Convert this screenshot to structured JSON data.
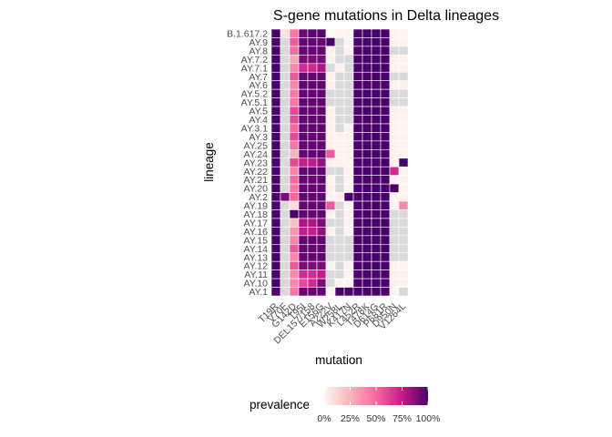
{
  "chart_data": {
    "type": "heatmap",
    "title": "S-gene mutations in Delta lineages",
    "xlabel": "mutation",
    "ylabel": "lineage",
    "rows": [
      "B.1.617.2",
      "AY.9",
      "AY.8",
      "AY.7.2",
      "AY.7.1",
      "AY.7",
      "AY.6",
      "AY.5.2",
      "AY.5.1",
      "AY.5",
      "AY.4",
      "AY.3.1",
      "AY.3",
      "AY.25",
      "AY.24",
      "AY.23",
      "AY.22",
      "AY.21",
      "AY.20",
      "AY.2",
      "AY.19",
      "AY.18",
      "AY.17",
      "AY.16",
      "AY.15",
      "AY.14",
      "AY.13",
      "AY.12",
      "AY.11",
      "AY.10",
      "AY.1"
    ],
    "columns": [
      "T19R",
      "V70F",
      "G142D",
      "T95I",
      "DEL157/158",
      "E156G",
      "A222V",
      "W258L",
      "K417N",
      "L452R",
      "T478K",
      "D614G",
      "P681R",
      "D950N",
      "V1264L"
    ],
    "value_range": [
      0,
      1
    ],
    "missing_color": "#d9d9d9",
    "values": [
      [
        1,
        0.08,
        0.45,
        0.92,
        0.96,
        0.97,
        0,
        0.02,
        0.02,
        1,
        1,
        1,
        1,
        0.02,
        0.02
      ],
      [
        1,
        null,
        0.55,
        0.95,
        0.95,
        0.95,
        1,
        null,
        0.02,
        1,
        1,
        1,
        1,
        0.02,
        0.02
      ],
      [
        1,
        null,
        0.5,
        0.95,
        0.95,
        0.95,
        0.02,
        null,
        0.02,
        1,
        1,
        1,
        1,
        null,
        null
      ],
      [
        1,
        null,
        0.3,
        0.9,
        0.9,
        0.9,
        0.02,
        null,
        null,
        1,
        1,
        1,
        1,
        0.02,
        0.02
      ],
      [
        1,
        null,
        0.4,
        0.7,
        0.7,
        0.8,
        null,
        0.02,
        null,
        1,
        1,
        1,
        1,
        0.02,
        0.02
      ],
      [
        1,
        null,
        0.55,
        0.95,
        0.95,
        0.95,
        0.02,
        null,
        null,
        1,
        1,
        1,
        1,
        null,
        null
      ],
      [
        1,
        null,
        0.4,
        0.95,
        0.95,
        0.95,
        0.02,
        null,
        null,
        1,
        1,
        1,
        1,
        0.02,
        0.02
      ],
      [
        1,
        null,
        0.45,
        0.95,
        0.95,
        0.95,
        null,
        null,
        null,
        1,
        1,
        1,
        1,
        null,
        null
      ],
      [
        1,
        null,
        0.45,
        0.95,
        0.95,
        0.95,
        null,
        null,
        null,
        1,
        1,
        1,
        1,
        null,
        null
      ],
      [
        1,
        null,
        0.6,
        0.95,
        0.95,
        0.95,
        0.02,
        null,
        null,
        1,
        1,
        1,
        1,
        0.02,
        0.02
      ],
      [
        1,
        null,
        0.6,
        0.95,
        0.95,
        0.95,
        0.02,
        null,
        null,
        1,
        1,
        1,
        1,
        0.02,
        0.02
      ],
      [
        1,
        null,
        0.5,
        0.95,
        0.95,
        0.95,
        0.02,
        null,
        0.02,
        1,
        1,
        1,
        1,
        0.02,
        0.02
      ],
      [
        1,
        null,
        0.6,
        0.95,
        0.95,
        0.95,
        0.02,
        0.02,
        0.02,
        1,
        1,
        1,
        1,
        0.02,
        0.02
      ],
      [
        1,
        null,
        0.45,
        0.95,
        0.95,
        0.95,
        0.02,
        0.02,
        0.02,
        1,
        1,
        1,
        1,
        0.02,
        0.02
      ],
      [
        1,
        null,
        0.25,
        0.95,
        0.95,
        0.95,
        0.55,
        0.02,
        0.02,
        1,
        1,
        1,
        1,
        0.02,
        0.02
      ],
      [
        1,
        null,
        0.6,
        0.75,
        0.75,
        0.85,
        0.02,
        0.02,
        0.02,
        1,
        1,
        1,
        1,
        0.02,
        1
      ],
      [
        1,
        null,
        0.4,
        0.95,
        0.95,
        0.95,
        null,
        null,
        0.02,
        1,
        1,
        1,
        1,
        0.7,
        0.02
      ],
      [
        1,
        null,
        0.5,
        0.95,
        0.95,
        0.95,
        0.02,
        null,
        0.02,
        1,
        1,
        1,
        1,
        0.02,
        0.02
      ],
      [
        1,
        null,
        0.45,
        0.95,
        0.95,
        0.95,
        0.02,
        null,
        0.02,
        1,
        1,
        1,
        1,
        1,
        0.02
      ],
      [
        1,
        0.9,
        0.5,
        0.95,
        0.95,
        0.95,
        0.02,
        0.02,
        1,
        1,
        1,
        1,
        1,
        0.02,
        0.02
      ],
      [
        1,
        null,
        0.1,
        0.95,
        0.95,
        0.95,
        0.55,
        null,
        0.02,
        1,
        1,
        1,
        1,
        0.02,
        0.4
      ],
      [
        1,
        null,
        1,
        0.95,
        0.95,
        0.95,
        0.02,
        null,
        0.02,
        1,
        1,
        1,
        1,
        null,
        null
      ],
      [
        1,
        null,
        0.2,
        0.8,
        0.8,
        0.9,
        null,
        null,
        0.02,
        1,
        1,
        1,
        1,
        null,
        null
      ],
      [
        1,
        null,
        0.35,
        0.75,
        0.75,
        0.85,
        0.02,
        null,
        0.02,
        1,
        1,
        1,
        1,
        null,
        null
      ],
      [
        1,
        null,
        0.4,
        0.95,
        0.95,
        0.95,
        null,
        null,
        null,
        1,
        1,
        1,
        1,
        null,
        null
      ],
      [
        1,
        null,
        0.55,
        0.95,
        0.95,
        0.95,
        null,
        null,
        null,
        1,
        1,
        1,
        1,
        null,
        null
      ],
      [
        1,
        null,
        0.4,
        0.95,
        0.95,
        0.95,
        null,
        null,
        null,
        1,
        1,
        1,
        1,
        null,
        null
      ],
      [
        1,
        null,
        0.55,
        0.9,
        0.9,
        0.9,
        0.02,
        null,
        0.02,
        1,
        1,
        1,
        1,
        0.02,
        0.02
      ],
      [
        1,
        null,
        0.4,
        0.7,
        0.7,
        0.75,
        null,
        null,
        0.02,
        1,
        1,
        1,
        1,
        0.02,
        0.02
      ],
      [
        1,
        null,
        0.4,
        0.6,
        0.7,
        0.9,
        null,
        0.02,
        0.02,
        1,
        1,
        1,
        1,
        0.02,
        0.02
      ],
      [
        1,
        null,
        0.45,
        0.95,
        0.95,
        0.95,
        0.02,
        1,
        1,
        1,
        1,
        1,
        1,
        0.02,
        null
      ]
    ],
    "legend": {
      "title": "prevalence",
      "breaks": [
        0,
        0.25,
        0.5,
        0.75,
        1
      ],
      "labels": [
        "0%",
        "25%",
        "50%",
        "75%",
        "100%"
      ],
      "colors": [
        "#fff7f3",
        "#fbb4b9",
        "#f768a1",
        "#c51b8a",
        "#49006a"
      ],
      "placement": "bottom"
    },
    "grid": false
  }
}
